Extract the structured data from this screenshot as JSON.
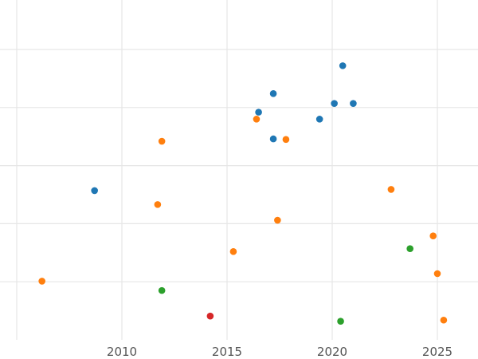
{
  "chart_data": {
    "type": "scatter",
    "title": "",
    "xlabel": "",
    "ylabel": "",
    "xlim": [
      2005,
      2027
    ],
    "ylim": [
      0,
      6
    ],
    "grid": true,
    "legend": "none",
    "x_ticks": [
      2010,
      2015,
      2020,
      2025
    ],
    "x_tick_labels": [
      "2010",
      "2015",
      "2020",
      "2025"
    ],
    "y_grid_values": [
      1,
      2,
      3,
      4,
      5
    ],
    "series": [
      {
        "color": "#1f77b4",
        "points": [
          {
            "x": 2008.7,
            "y": 2.57
          },
          {
            "x": 2016.5,
            "y": 3.92
          },
          {
            "x": 2017.2,
            "y": 4.24
          },
          {
            "x": 2017.2,
            "y": 3.46
          },
          {
            "x": 2019.4,
            "y": 3.8
          },
          {
            "x": 2020.1,
            "y": 4.07
          },
          {
            "x": 2020.5,
            "y": 4.72
          },
          {
            "x": 2021.0,
            "y": 4.07
          }
        ]
      },
      {
        "color": "#ff7f0e",
        "points": [
          {
            "x": 2006.2,
            "y": 1.01
          },
          {
            "x": 2011.7,
            "y": 2.33
          },
          {
            "x": 2011.9,
            "y": 3.42
          },
          {
            "x": 2015.3,
            "y": 1.52
          },
          {
            "x": 2016.4,
            "y": 3.8
          },
          {
            "x": 2017.4,
            "y": 2.06
          },
          {
            "x": 2017.8,
            "y": 3.45
          },
          {
            "x": 2022.8,
            "y": 2.59
          },
          {
            "x": 2024.8,
            "y": 1.79
          },
          {
            "x": 2025.0,
            "y": 1.14
          },
          {
            "x": 2025.3,
            "y": 0.34
          }
        ]
      },
      {
        "color": "#2ca02c",
        "points": [
          {
            "x": 2011.9,
            "y": 0.85
          },
          {
            "x": 2020.4,
            "y": 0.32
          },
          {
            "x": 2023.7,
            "y": 1.57
          }
        ]
      },
      {
        "color": "#d62728",
        "points": [
          {
            "x": 2014.2,
            "y": 0.41
          }
        ]
      }
    ]
  }
}
